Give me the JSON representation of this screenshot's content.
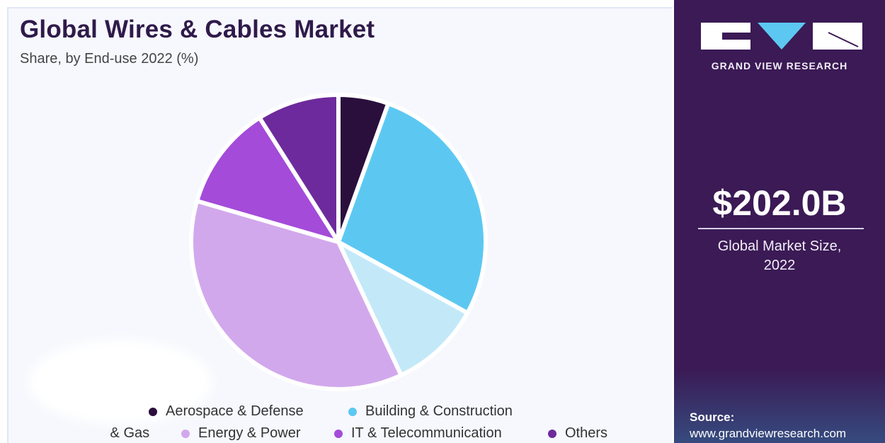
{
  "header": {
    "title": "Global Wires & Cables Market",
    "subtitle": "Share, by End-use 2022 (%)"
  },
  "sidebar": {
    "brand": "GRAND VIEW RESEARCH",
    "market_size": "$202.0B",
    "market_caption_line1": "Global Market Size,",
    "market_caption_line2": "2022",
    "source_label": "Source:",
    "source_url": "www.grandviewresearch.com",
    "background_color": "#3b1a55"
  },
  "legend": {
    "items": [
      {
        "label": "Aerospace & Defense",
        "color": "#2a0f3d"
      },
      {
        "label": "Building & Construction",
        "color": "#5cc8f2"
      },
      {
        "label": " & Gas",
        "color": "#c3e9f8"
      },
      {
        "label": "Energy & Power",
        "color": "#d2a8ec"
      },
      {
        "label": "IT & Telecommunication",
        "color": "#a44bd9"
      },
      {
        "label": "Others",
        "color": "#6d2a9c"
      }
    ]
  },
  "chart_data": {
    "type": "pie",
    "title": "Global Wires & Cables Market",
    "subtitle": "Share, by End-use 2022 (%)",
    "categories": [
      "Aerospace & Defense",
      "Building & Construction",
      "Oil & Gas",
      "Energy & Power",
      "IT & Telecommunication",
      "Others"
    ],
    "values": [
      5.5,
      27.5,
      10.0,
      36.5,
      11.5,
      9.0
    ],
    "colors": [
      "#2a0f3d",
      "#5cc8f2",
      "#c3e9f8",
      "#d2a8ec",
      "#a44bd9",
      "#6d2a9c"
    ],
    "legend_position": "bottom"
  }
}
